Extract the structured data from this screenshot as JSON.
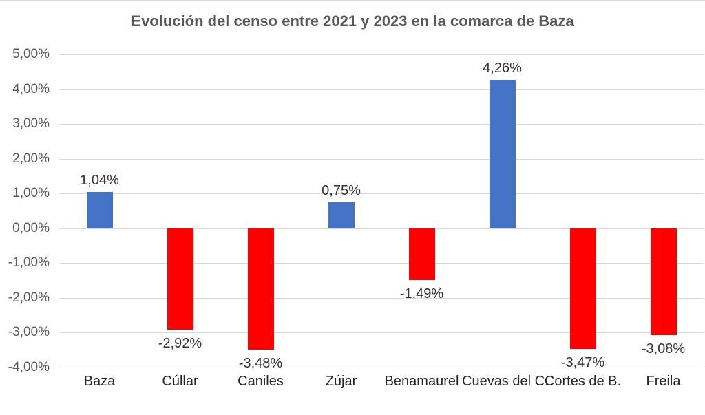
{
  "title": "Evolución del censo entre 2021 y 2023 en la comarca de Baza",
  "chart_data": {
    "type": "bar",
    "title": "Evolución del censo entre 2021 y 2023 en la comarca de Baza",
    "xlabel": "",
    "ylabel": "",
    "categories": [
      "Baza",
      "Cúllar",
      "Caniles",
      "Zújar",
      "Benamaurel",
      "Cuevas del C.",
      "Cortes de B.",
      "Freila"
    ],
    "values": [
      1.04,
      -2.92,
      -3.48,
      0.75,
      -1.49,
      4.26,
      -3.47,
      -3.08
    ],
    "value_labels": [
      "1,04%",
      "-2,92%",
      "-3,48%",
      "0,75%",
      "-1,49%",
      "4,26%",
      "-3,47%",
      "-3,08%"
    ],
    "y_ticks": [
      5,
      4,
      3,
      2,
      1,
      0,
      -1,
      -2,
      -3,
      -4
    ],
    "y_tick_labels": [
      "5,00%",
      "4,00%",
      "3,00%",
      "2,00%",
      "1,00%",
      "0,00%",
      "-1,00%",
      "-2,00%",
      "-3,00%",
      "-4,00%"
    ],
    "ylim": [
      -4,
      5
    ],
    "grid": true,
    "legend": "none",
    "colors": {
      "positive_bar": "#4472C4",
      "negative_bar": "#FF0000",
      "gridline": "#D9D9D9",
      "title_text": "#595959",
      "axis_label_text": "#595959",
      "data_label_text": "#333333",
      "category_label_text": "#262626"
    }
  }
}
